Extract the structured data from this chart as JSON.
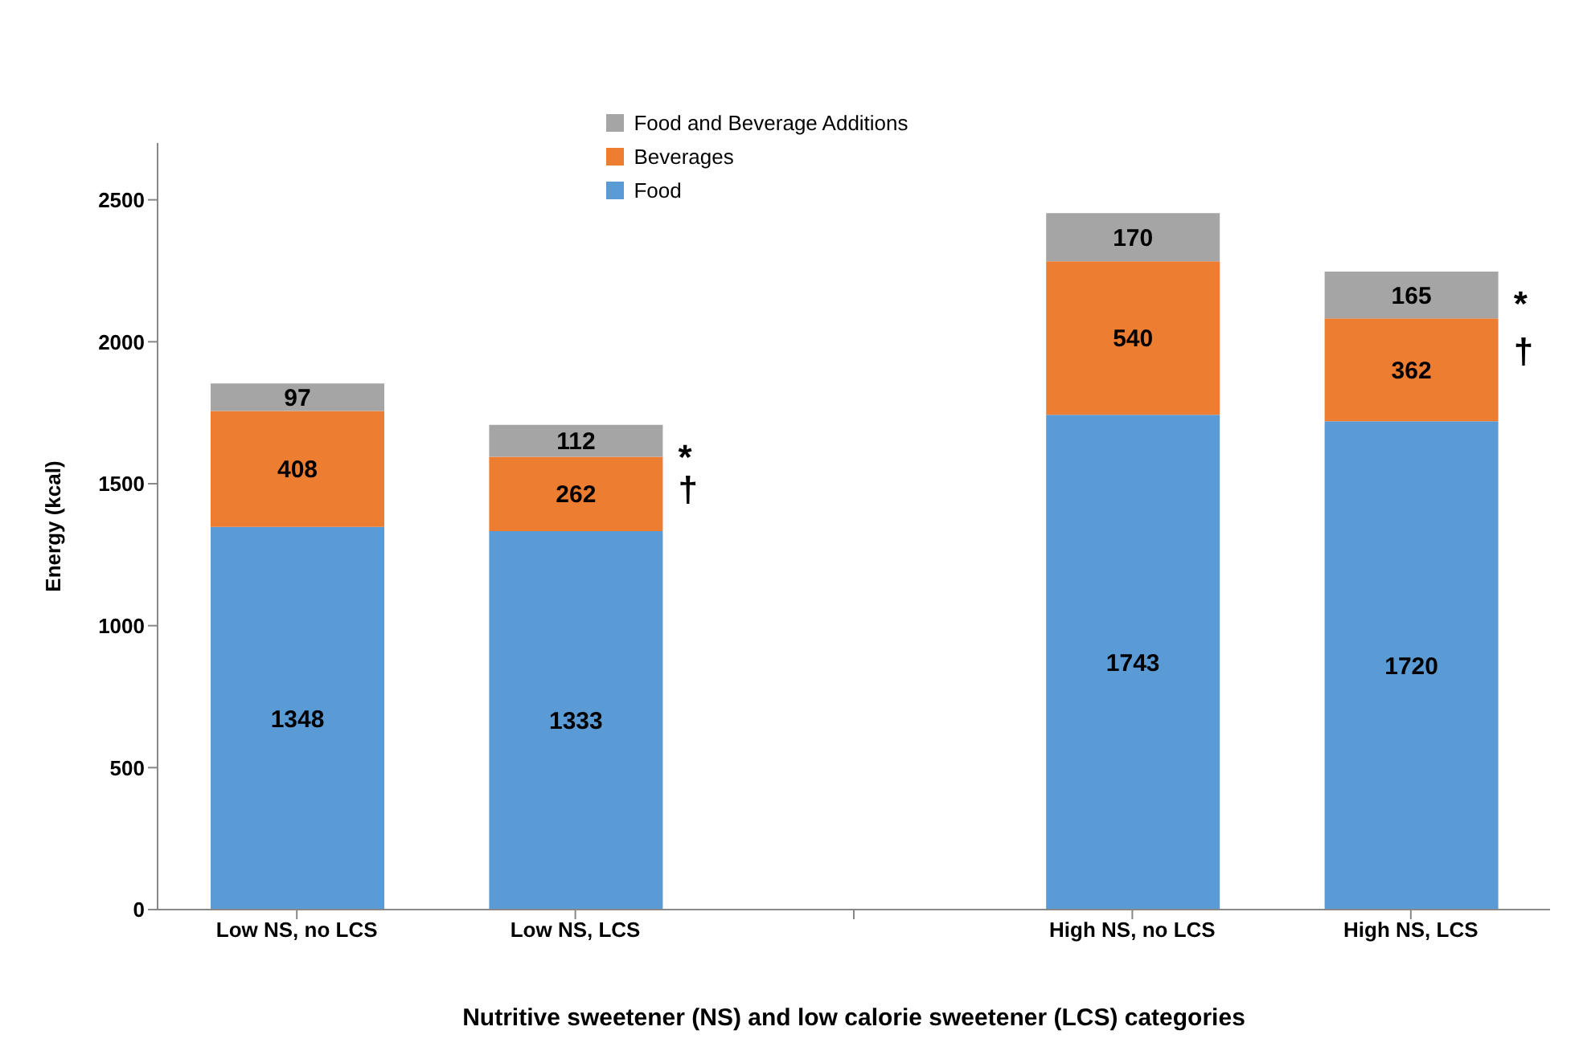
{
  "chart_data": {
    "type": "bar",
    "stacked": true,
    "xlabel": "Nutritive sweetener (NS) and low calorie sweetener (LCS) categories",
    "ylabel": "Energy (kcal)",
    "categories": [
      "Low NS, no LCS",
      "Low NS, LCS",
      null,
      "High NS, no LCS",
      "High NS, LCS"
    ],
    "series": [
      {
        "name": "Food",
        "color": "#5b9bd5",
        "values": [
          1348,
          1333,
          null,
          1743,
          1720
        ]
      },
      {
        "name": "Beverages",
        "color": "#ed7d31",
        "values": [
          408,
          262,
          null,
          540,
          362
        ]
      },
      {
        "name": "Food and Beverage Additions",
        "color": "#a5a5a5",
        "values": [
          97,
          112,
          null,
          170,
          165
        ]
      }
    ],
    "ylim": [
      0,
      2700
    ],
    "yticks": [
      0,
      500,
      1000,
      1500,
      2000,
      2500
    ],
    "grid": false,
    "legend": "top",
    "data_labels": true,
    "annotations": [
      {
        "text": "*",
        "x": "Low NS, LCS",
        "y": 1707
      },
      {
        "text": "†",
        "x": "Low NS, LCS",
        "y": 1595
      },
      {
        "text": "*",
        "x": "High NS, LCS",
        "y": 2247
      },
      {
        "text": "†",
        "x": "High NS, LCS",
        "y": 2082
      }
    ]
  }
}
